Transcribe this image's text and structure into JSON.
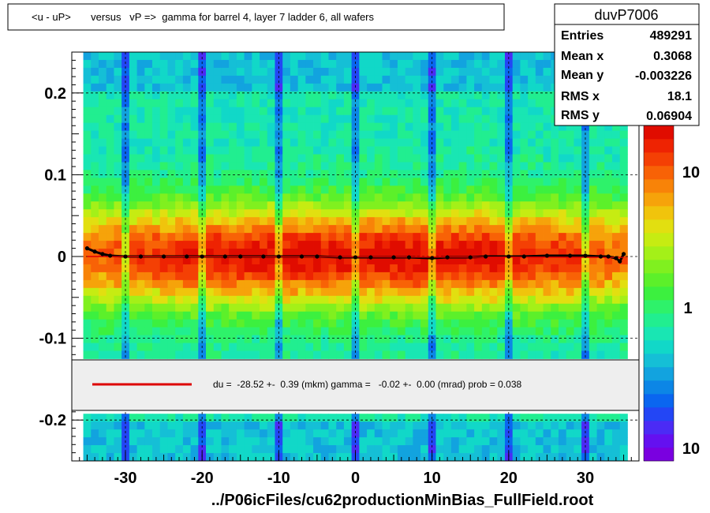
{
  "chart_data": {
    "type": "heatmap",
    "title": "<u - uP>       versus   vP =>  gamma for barrel 4, layer 7 ladder 6, all wafers",
    "xlabel": "../P06icFiles/cu62productionMinBias_FullField.root",
    "ylabel": "",
    "xlim": [
      -37,
      37
    ],
    "ylim": [
      -0.25,
      0.25
    ],
    "x_ticks": [
      -30,
      -20,
      -10,
      0,
      10,
      20,
      30
    ],
    "x_tick_labels": [
      "-30",
      "-20",
      "-10",
      "0",
      "10",
      "20",
      "30"
    ],
    "y_ticks": [
      -0.2,
      -0.1,
      0,
      0.1,
      0.2
    ],
    "y_tick_labels": [
      "-0.2",
      "-0.1",
      "0",
      "0.1",
      "0.2"
    ],
    "grid": true,
    "color_scale": "log",
    "colorbar_tick_labels": [
      "10",
      "1",
      "10"
    ],
    "stats_box": {
      "name": "duvP7006",
      "rows": [
        {
          "label": "Entries",
          "value": "489291"
        },
        {
          "label": "Mean x",
          "value": "0.3068"
        },
        {
          "label": "Mean y",
          "value": "-0.003226"
        },
        {
          "label": "RMS x",
          "value": "18.1"
        },
        {
          "label": "RMS y",
          "value": "0.06904"
        }
      ]
    },
    "fit_legend": {
      "text": "du =  -28.52 +-  0.39 (mkm) gamma =   -0.02 +-  0.00 (mrad) prob = 0.038",
      "line_color": "#dd0000"
    },
    "profile_points": {
      "x": [
        -35,
        -34,
        -33,
        -32,
        -30,
        -28,
        -25,
        -22,
        -20,
        -17,
        -15,
        -12,
        -10,
        -7,
        -5,
        -2,
        0,
        2,
        5,
        7,
        10,
        12,
        15,
        17,
        20,
        22,
        25,
        28,
        30,
        32,
        33,
        34,
        34.5,
        35
      ],
      "y": [
        0.01,
        0.006,
        0.003,
        0.001,
        0.0,
        0.0,
        0.0,
        0.0,
        0.0,
        0.0,
        0.0,
        0.0,
        0.0,
        0.0,
        0.0,
        -0.001,
        -0.001,
        -0.001,
        -0.001,
        -0.001,
        -0.002,
        -0.001,
        -0.001,
        0.0,
        0.0,
        0.0,
        0.001,
        0.001,
        0.001,
        0.0,
        0.0,
        -0.002,
        -0.006,
        0.003
      ]
    },
    "colors": {
      "frame": "#000000",
      "profile": "#000000",
      "fit_line": "#dd0000",
      "grid": "#000000"
    }
  }
}
